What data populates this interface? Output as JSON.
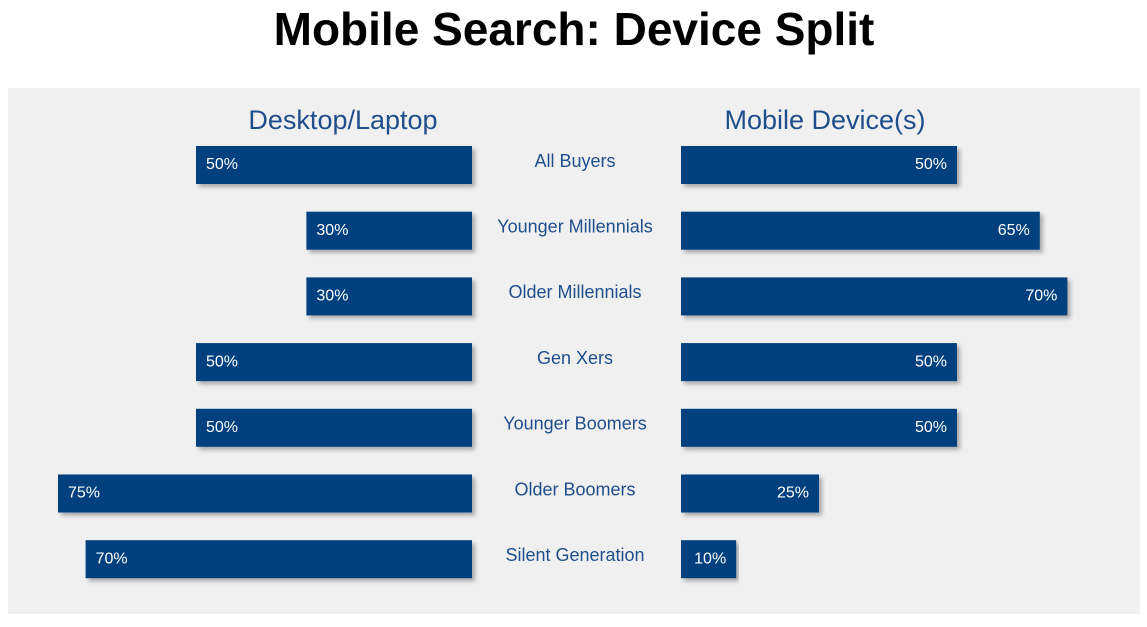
{
  "chart_data": {
    "type": "butterfly",
    "title": "Mobile Search: Device Split",
    "categories": [
      "All Buyers",
      "Younger Millennials",
      "Older Millennials",
      "Gen Xers",
      "Younger Boomers",
      "Older Boomers",
      "Silent Generation"
    ],
    "series": [
      {
        "name": "Desktop/Laptop",
        "color": "#023f7f",
        "values": [
          50,
          30,
          30,
          50,
          50,
          75,
          70
        ],
        "value_labels": [
          "50%",
          "30%",
          "30%",
          "50%",
          "50%",
          "75%",
          "70%"
        ]
      },
      {
        "name": "Mobile Device(s)",
        "color": "#023f7f",
        "values": [
          50,
          65,
          70,
          50,
          50,
          25,
          10
        ],
        "value_labels": [
          "50%",
          "65%",
          "70%",
          "50%",
          "50%",
          "25%",
          "10%"
        ]
      }
    ]
  }
}
